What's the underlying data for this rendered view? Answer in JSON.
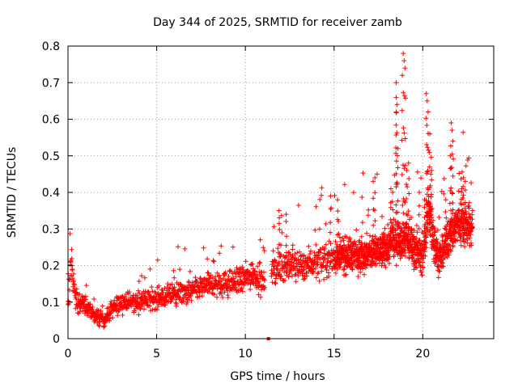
{
  "chart_data": {
    "type": "scatter",
    "title": "Day 344 of 2025, SRMTID for receiver zamb",
    "xlabel": "GPS time / hours",
    "ylabel": "SRMTID / TECUs",
    "xlim": [
      0,
      24
    ],
    "ylim": [
      0,
      0.8
    ],
    "x_ticks": [
      0,
      5,
      10,
      15,
      20
    ],
    "x_tick_labels": [
      "0",
      "5",
      "10",
      "15",
      "20"
    ],
    "y_ticks": [
      0,
      0.1,
      0.2,
      0.3,
      0.4,
      0.5,
      0.6,
      0.7,
      0.8
    ],
    "y_tick_labels": [
      "0",
      "0.1",
      "0.2",
      "0.3",
      "0.4",
      "0.5",
      "0.6",
      "0.7",
      "0.8"
    ],
    "grid": true,
    "marker": "+",
    "marker_color": "#ff0000",
    "grid_color": "#a0a0a0",
    "series": [
      {
        "name": "SRMTID",
        "trend": [
          [
            0.0,
            0.08
          ],
          [
            0.15,
            0.22
          ],
          [
            0.4,
            0.11
          ],
          [
            0.8,
            0.09
          ],
          [
            1.2,
            0.08
          ],
          [
            1.6,
            0.06
          ],
          [
            2.0,
            0.05
          ],
          [
            2.5,
            0.08
          ],
          [
            3.0,
            0.1
          ],
          [
            4.0,
            0.1
          ],
          [
            5.0,
            0.11
          ],
          [
            6.0,
            0.12
          ],
          [
            7.0,
            0.13
          ],
          [
            8.0,
            0.15
          ],
          [
            9.0,
            0.15
          ],
          [
            9.8,
            0.16
          ],
          [
            10.5,
            0.18
          ],
          [
            11.0,
            0.15
          ],
          [
            11.5,
            0.19
          ],
          [
            12.0,
            0.2
          ],
          [
            13.0,
            0.2
          ],
          [
            14.0,
            0.21
          ],
          [
            15.0,
            0.22
          ],
          [
            16.0,
            0.23
          ],
          [
            17.0,
            0.23
          ],
          [
            18.0,
            0.25
          ],
          [
            18.5,
            0.27
          ],
          [
            19.0,
            0.28
          ],
          [
            19.5,
            0.25
          ],
          [
            20.0,
            0.22
          ],
          [
            20.3,
            0.35
          ],
          [
            20.7,
            0.25
          ],
          [
            21.0,
            0.22
          ],
          [
            21.5,
            0.28
          ],
          [
            22.0,
            0.32
          ],
          [
            22.8,
            0.3
          ]
        ],
        "spikes": [
          [
            18.9,
            0.78
          ],
          [
            18.95,
            0.76
          ],
          [
            19.0,
            0.74
          ],
          [
            18.85,
            0.72
          ],
          [
            18.5,
            0.7
          ],
          [
            18.5,
            0.66
          ],
          [
            18.55,
            0.64
          ],
          [
            18.5,
            0.62
          ],
          [
            19.2,
            0.48
          ],
          [
            19.1,
            0.46
          ],
          [
            20.2,
            0.67
          ],
          [
            20.25,
            0.65
          ],
          [
            20.3,
            0.62
          ],
          [
            20.4,
            0.56
          ],
          [
            20.5,
            0.46
          ],
          [
            20.45,
            0.45
          ],
          [
            21.6,
            0.59
          ],
          [
            21.65,
            0.57
          ],
          [
            21.7,
            0.54
          ],
          [
            21.55,
            0.5
          ],
          [
            17.3,
            0.44
          ],
          [
            17.2,
            0.43
          ],
          [
            18.6,
            0.52
          ],
          [
            22.3,
            0.44
          ],
          [
            22.4,
            0.43
          ],
          [
            22.2,
            0.41
          ],
          [
            18.2,
            0.41
          ],
          [
            18.3,
            0.4
          ],
          [
            14.8,
            0.39
          ],
          [
            15.2,
            0.38
          ],
          [
            11.9,
            0.35
          ],
          [
            12.3,
            0.34
          ],
          [
            19.8,
            0.4
          ],
          [
            20.1,
            0.38
          ],
          [
            21.3,
            0.38
          ]
        ],
        "baseline_point": [
          11.3,
          0.0
        ]
      }
    ]
  }
}
